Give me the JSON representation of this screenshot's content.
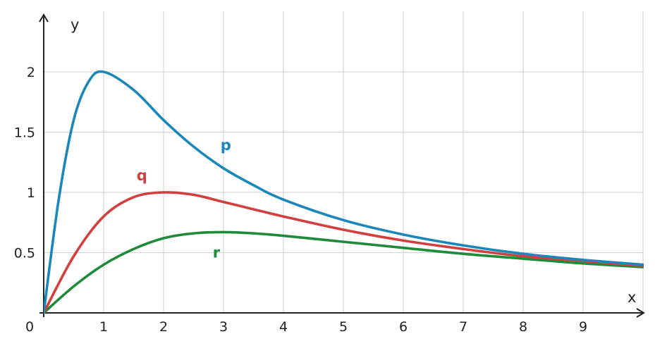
{
  "chart_data": {
    "type": "line",
    "title": "",
    "xlabel": "x",
    "ylabel": "y",
    "origin_label": "0",
    "xlim": [
      0,
      10
    ],
    "ylim": [
      0,
      2.4
    ],
    "x_ticks": [
      1,
      2,
      3,
      4,
      5,
      6,
      7,
      8,
      9
    ],
    "x_tick_labels": [
      "1",
      "2",
      "3",
      "4",
      "5",
      "6",
      "7",
      "8",
      "9"
    ],
    "y_ticks": [
      0.5,
      1,
      1.5,
      2
    ],
    "y_tick_labels": [
      "0.5",
      "1",
      "1.5",
      "2"
    ],
    "x_grid_lines": [
      1,
      2,
      3,
      4,
      5,
      6,
      7,
      8,
      9,
      10
    ],
    "grid": true,
    "legend": "none (series labelled inline)",
    "series": [
      {
        "name": "p",
        "color": "#1a86b9",
        "label_at": [
          2.95,
          1.35
        ],
        "x": [
          0,
          0.25,
          0.5,
          0.75,
          1,
          1.5,
          2,
          2.5,
          3,
          3.5,
          4,
          5,
          6,
          7,
          8,
          9,
          10
        ],
        "y": [
          0,
          0.94,
          1.6,
          1.92,
          2.0,
          1.85,
          1.6,
          1.38,
          1.2,
          1.06,
          0.94,
          0.77,
          0.65,
          0.56,
          0.49,
          0.44,
          0.4
        ]
      },
      {
        "name": "q",
        "color": "#d13f3f",
        "label_at": [
          1.55,
          1.1
        ],
        "x": [
          0,
          0.5,
          1,
          1.5,
          2,
          2.5,
          3,
          3.5,
          4,
          5,
          6,
          7,
          8,
          9,
          10
        ],
        "y": [
          0,
          0.47,
          0.8,
          0.96,
          1.0,
          0.98,
          0.92,
          0.86,
          0.8,
          0.69,
          0.6,
          0.53,
          0.47,
          0.43,
          0.39
        ]
      },
      {
        "name": "r",
        "color": "#1e8a3a",
        "label_at": [
          2.82,
          0.46
        ],
        "x": [
          0,
          0.5,
          1,
          1.5,
          2,
          2.5,
          3,
          3.5,
          4,
          5,
          6,
          7,
          8,
          9,
          10
        ],
        "y": [
          0,
          0.22,
          0.4,
          0.53,
          0.62,
          0.66,
          0.67,
          0.66,
          0.64,
          0.59,
          0.54,
          0.49,
          0.45,
          0.41,
          0.38
        ]
      }
    ]
  }
}
